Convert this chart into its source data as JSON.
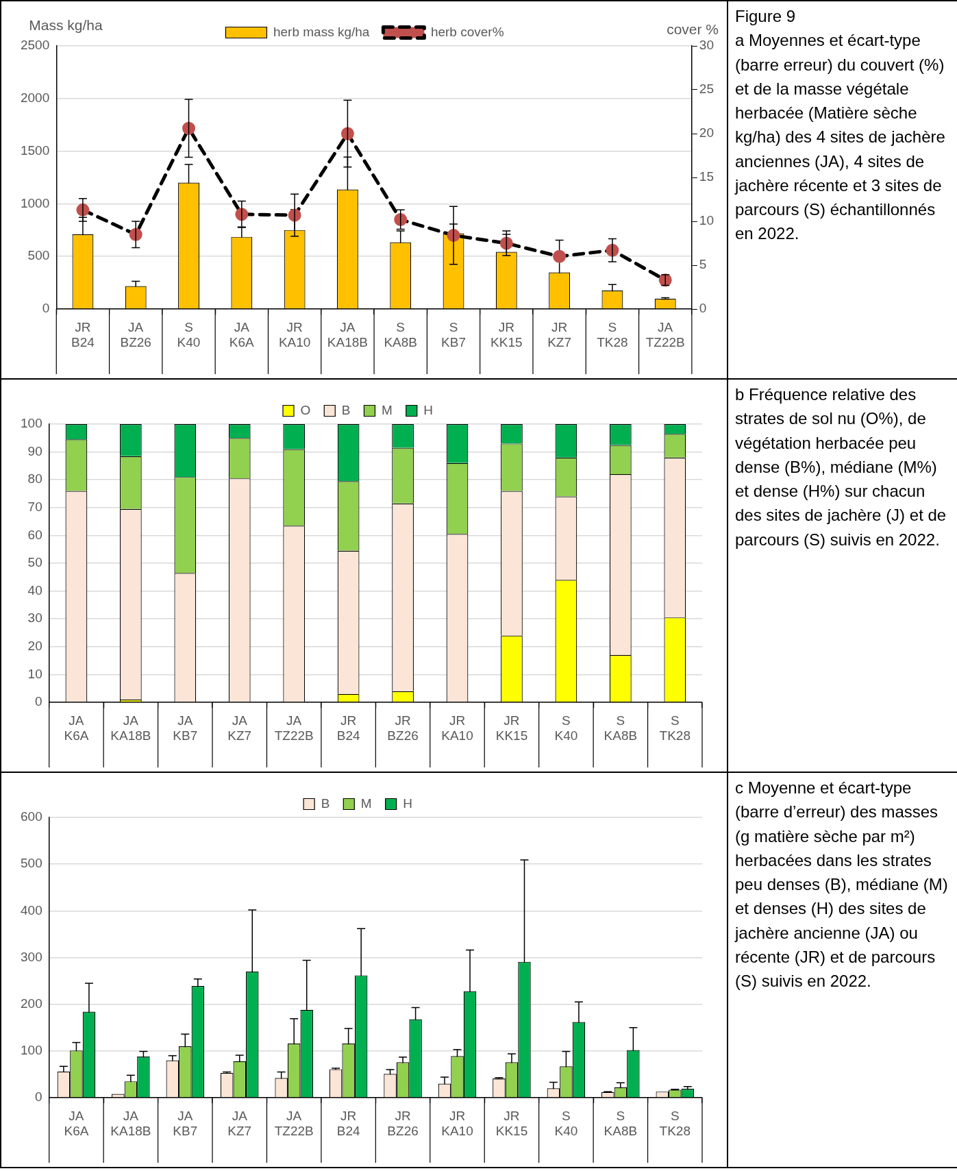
{
  "chart_data": [
    {
      "type": "bar",
      "ylabel": "Mass kg/ha",
      "y2label": "cover %",
      "legend": "top",
      "grid": "y",
      "marker": "circle",
      "line_style": "dashed",
      "categories": [
        "JR\nB24",
        "JA\nBZ26",
        "S\nK40",
        "JA\nK6A",
        "JR\nKA10",
        "JA\nKA18B",
        "S\nKA8B",
        "S\nKB7",
        "JR\nKK15",
        "JR\nKZ7",
        "S\nTK28",
        "JA\nTZ22B"
      ],
      "series": [
        {
          "name": "herb mass kg/ha",
          "color": "#ffc000",
          "values": [
            710,
            218,
            1201,
            686,
            751,
            1136,
            635,
            719,
            543,
            348,
            176,
            97
          ],
          "errors": [
            160,
            46,
            172,
            93,
            195,
            307,
            107,
            88,
            167,
            306,
            56,
            10
          ]
        },
        {
          "name": "herb cover%",
          "type": "line",
          "axis": "y2",
          "color": "#000000",
          "colors": [
            "#c0504d",
            "#c0504d",
            "#c0504d",
            "#c0504d",
            "#c0504d",
            "#c0504d",
            "#c0504d",
            "#c0504d",
            "#c0504d",
            "#c0504d",
            "#c0504d",
            "#c0504d"
          ],
          "values": [
            11.3,
            8.5,
            20.6,
            10.8,
            10.7,
            20.0,
            10.2,
            8.4,
            7.5,
            6.0,
            6.7,
            3.3
          ],
          "errors": [
            1.3,
            1.5,
            3.3,
            1.5,
            2.4,
            3.8,
            1.1,
            3.3,
            1.4,
            null,
            1.3,
            0.6
          ]
        }
      ],
      "ylim": [
        0,
        2500
      ],
      "yticks": [
        0,
        500,
        1000,
        1500,
        2000,
        2500
      ],
      "y2lim": [
        0,
        30
      ],
      "y2ticks": [
        0,
        5,
        10,
        15,
        20,
        25,
        30
      ],
      "annotations": [
        "Figure 9",
        "a Moyennes et écart-type (barre erreur) du couvert (%) et de la masse végétale herbacée (Matière sèche kg/ha) des 4 sites de jachère anciennes (JA), 4 sites de jachère récente et 3 sites de parcours (S) échantillonnés en 2022."
      ]
    },
    {
      "type": "bar",
      "stacked": true,
      "legend": "top",
      "grid": "y",
      "categories": [
        "JA\nK6A",
        "JA\nKA18B",
        "JA\nKB7",
        "JA\nKZ7",
        "JA\nTZ22B",
        "JR\nB24",
        "JR\nBZ26",
        "JR\nKA10",
        "JR\nKK15",
        "S\nK40",
        "S\nKA8B",
        "S\nTK28"
      ],
      "series": [
        {
          "name": "O",
          "color": "#ffff00",
          "values": [
            0,
            1,
            0,
            0,
            0,
            3,
            4,
            0,
            24,
            44,
            17,
            30.5
          ]
        },
        {
          "name": "B",
          "color": "#fbe5d6",
          "values": [
            76,
            68.5,
            46.5,
            80.5,
            63.5,
            51.5,
            67.5,
            60.5,
            52,
            30,
            65,
            57.5
          ]
        },
        {
          "name": "M",
          "color": "#92d050",
          "values": [
            18.5,
            19,
            34.5,
            14.5,
            27.5,
            25,
            20,
            25.5,
            17,
            14,
            10.5,
            8.5
          ]
        },
        {
          "name": "H",
          "color": "#00b050",
          "values": [
            5.5,
            11.5,
            19,
            5,
            9,
            20.5,
            8.5,
            14,
            7,
            12,
            7.5,
            3.5
          ]
        }
      ],
      "ylim": [
        0,
        100
      ],
      "yticks": [
        0,
        10,
        20,
        30,
        40,
        50,
        60,
        70,
        80,
        90,
        100
      ],
      "annotations": [
        "b Fréquence relative des strates de sol nu (O%), de végétation herbacée peu dense (B%), médiane (M%) et dense (H%) sur chacun des sites de jachère (J) et de parcours (S) suivis en 2022."
      ]
    },
    {
      "type": "bar",
      "legend": "top",
      "grid": "y",
      "categories": [
        "JA\nK6A",
        "JA\nKA18B",
        "JA\nKB7",
        "JA\nKZ7",
        "JA\nTZ22B",
        "JR\nB24",
        "JR\nBZ26",
        "JR\nKA10",
        "JR\nKK15",
        "S\nK40",
        "S\nKA8B",
        "S\nTK28"
      ],
      "series": [
        {
          "name": "B",
          "color": "#fbe5d6",
          "values": [
            56,
            8,
            80,
            53,
            42,
            61,
            51,
            30,
            41,
            20,
            12,
            13
          ],
          "errors": [
            11,
            null,
            10,
            2,
            13,
            2,
            9,
            14,
            2,
            13,
            1,
            null
          ]
        },
        {
          "name": "M",
          "color": "#92d050",
          "values": [
            101,
            35,
            110,
            78,
            116,
            116,
            76,
            89,
            76,
            67,
            22,
            17
          ],
          "errors": [
            17,
            13,
            26,
            13,
            53,
            32,
            11,
            14,
            18,
            32,
            10,
            1
          ]
        },
        {
          "name": "H",
          "color": "#00b050",
          "values": [
            184,
            88,
            239,
            270,
            188,
            262,
            168,
            228,
            291,
            162,
            102,
            19
          ],
          "errors": [
            61,
            11,
            15,
            132,
            106,
            100,
            25,
            88,
            218,
            43,
            48,
            5
          ]
        }
      ],
      "ylim": [
        0,
        600
      ],
      "yticks": [
        0,
        100,
        200,
        300,
        400,
        500,
        600
      ],
      "annotations": [
        "c Moyenne et écart-type (barre d’erreur) des masses (g matière sèche par m²) herbacées dans les strates peu denses (B), médiane (M) et denses (H) des sites de jachère ancienne (JA) ou récente (JR) et de parcours (S) suivis en 2022."
      ]
    }
  ]
}
